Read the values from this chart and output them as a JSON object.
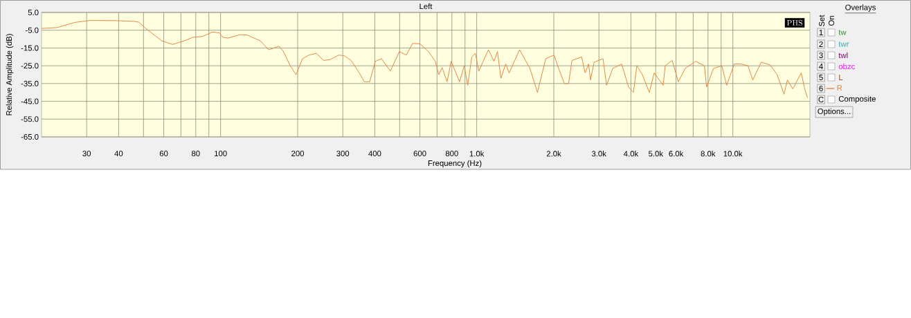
{
  "chart_data": {
    "type": "line",
    "title": "Left",
    "xlabel": "Frequency (Hz)",
    "ylabel": "Relative Amplitude (dB)",
    "log": "x",
    "grid": true,
    "legend": "right",
    "xlim": [
      20,
      20000
    ],
    "ylim": [
      -65,
      5
    ],
    "xticks": [
      30,
      40,
      {
        "value": 50,
        "label": null
      },
      60,
      {
        "value": 70,
        "label": null
      },
      80,
      {
        "value": 90,
        "label": null
      },
      100,
      200,
      300,
      400,
      {
        "value": 500,
        "label": null
      },
      600,
      {
        "value": 700,
        "label": null
      },
      800,
      {
        "value": 900,
        "label": null
      },
      {
        "value": 1000,
        "label": "1.0k"
      },
      {
        "value": 2000,
        "label": "2.0k"
      },
      {
        "value": 3000,
        "label": "3.0k"
      },
      {
        "value": 4000,
        "label": "4.0k"
      },
      {
        "value": 5000,
        "label": "5.0k"
      },
      {
        "value": 6000,
        "label": "6.0k"
      },
      {
        "value": 7000,
        "label": null
      },
      {
        "value": 8000,
        "label": "8.0k"
      },
      {
        "value": 9000,
        "label": null
      },
      {
        "value": 10000,
        "label": "10.0k"
      }
    ],
    "yticks": [
      {
        "value": 5,
        "label": "5.0"
      },
      {
        "value": -5,
        "label": "-5.0"
      },
      {
        "value": -15,
        "label": "-15.0"
      },
      {
        "value": -25,
        "label": "-25.0"
      },
      {
        "value": -35,
        "label": "-35.0"
      },
      {
        "value": -45,
        "label": "-45.0"
      },
      {
        "value": -55,
        "label": "-55.0"
      },
      {
        "value": -65,
        "label": "-65.0"
      }
    ],
    "series": [
      {
        "name": "R",
        "color": "#e0813c",
        "x": [
          20,
          23,
          27,
          31,
          39,
          46,
          48,
          51,
          59,
          65,
          72,
          78,
          85,
          93,
          99,
          102,
          107,
          119,
          127,
          143,
          154,
          169,
          176,
          187,
          197,
          209,
          221,
          237,
          252,
          268,
          289,
          304,
          323,
          348,
          364,
          382,
          402,
          425,
          460,
          499,
          531,
          562,
          601,
          648,
          689,
          711,
          733,
          766,
          795,
          857,
          894,
          922,
          957,
          988,
          1019,
          1111,
          1168,
          1205,
          1243,
          1298,
          1339,
          1470,
          1614,
          1726,
          1861,
          2004,
          2106,
          2199,
          2284,
          2355,
          2569,
          2650,
          2733,
          2783,
          2871,
          3114,
          3213,
          3397,
          3680,
          3918,
          4093,
          4219,
          4434,
          4719,
          4931,
          5346,
          5445,
          5796,
          6126,
          6519,
          7153,
          7750,
          7897,
          8400,
          9060,
          9460,
          10130,
          10770,
          11460,
          11970,
          12900,
          13980,
          14890,
          15840,
          16330,
          17150,
          18500,
          19080,
          19560
        ],
        "values": [
          -4,
          -3.5,
          -0.6,
          0.5,
          0.4,
          0,
          -0.5,
          -4,
          -11,
          -13,
          -11,
          -9,
          -8.5,
          -6,
          -6.5,
          -9,
          -9.4,
          -7.5,
          -7.7,
          -11,
          -16,
          -14,
          -17,
          -25,
          -30,
          -21,
          -19,
          -18,
          -22,
          -21.5,
          -19,
          -19.3,
          -22,
          -29,
          -34,
          -34,
          -22.5,
          -21,
          -28,
          -17,
          -19,
          -12.4,
          -12.7,
          -17,
          -22.5,
          -30,
          -26,
          -34,
          -22.5,
          -34,
          -25,
          -36,
          -20,
          -18,
          -28,
          -16,
          -22.5,
          -17,
          -32,
          -24,
          -29,
          -16,
          -26.5,
          -40,
          -21,
          -19,
          -28,
          -35,
          -35,
          -22,
          -20,
          -29,
          -24,
          -33,
          -23,
          -21,
          -36,
          -26.5,
          -24,
          -37,
          -40,
          -25,
          -30,
          -40,
          -29,
          -36,
          -25,
          -22,
          -34,
          -26.5,
          -22.5,
          -25,
          -37,
          -26.5,
          -25,
          -36,
          -24,
          -24,
          -25,
          -33,
          -23,
          -24.5,
          -30,
          -41,
          -33,
          -38,
          -29,
          -38,
          -43
        ]
      }
    ],
    "annotations": [
      "PHS",
      "Overlays",
      "Set",
      "On",
      "1",
      "tw",
      "2",
      "twr",
      "3",
      "twl",
      "4",
      "obzc",
      "5",
      "L",
      "6",
      "C",
      "Composite",
      "Options..."
    ]
  }
}
